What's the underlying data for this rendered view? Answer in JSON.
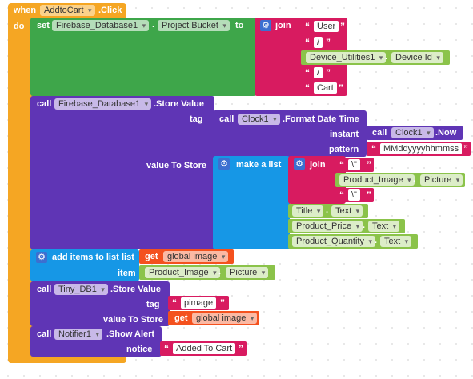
{
  "event": {
    "when": "when",
    "component": "AddtoCart",
    "event": ".Click",
    "do": "do"
  },
  "set_block": {
    "set": "set",
    "component": "Firebase_Database1",
    "property": "Project Bucket",
    "to": "to"
  },
  "join1": {
    "label": "join",
    "items": [
      "User",
      "/",
      "/",
      "Cart"
    ]
  },
  "device": {
    "component": "Device_Utilities1",
    "property": "Device Id"
  },
  "store_value": {
    "call": "call",
    "component": "Firebase_Database1",
    "method": ".Store Value",
    "tag": "tag",
    "value_to_store": "value To Store"
  },
  "clock_format": {
    "call": "call",
    "component": "Clock1",
    "method": ".Format Date Time",
    "instant": "instant",
    "pattern": "pattern"
  },
  "clock_now": {
    "call": "call",
    "component": "Clock1",
    "method": ".Now"
  },
  "pattern_value": "MMddyyyyhhmmss",
  "make_list": {
    "label": "make a list"
  },
  "join2": {
    "label": "join",
    "open": "\\\"",
    "close": "\\\""
  },
  "product_image": {
    "component": "Product_Image",
    "property": "Picture"
  },
  "title_text": {
    "component": "Title",
    "property": "Text"
  },
  "price_text": {
    "component": "Product_Price",
    "property": "Text"
  },
  "qty_text": {
    "component": "Product_Quantity",
    "property": "Text"
  },
  "add_items": {
    "label": "add items to list",
    "list": "list",
    "item": "item",
    "get": "get",
    "var": "global image"
  },
  "product_image2": {
    "component": "Product_Image",
    "property": "Picture"
  },
  "tinydb": {
    "call": "call",
    "component": "Tiny_DB1",
    "method": ".Store Value",
    "tag": "tag",
    "tag_value": "pimage",
    "value_to_store": "value To Store",
    "get": "get",
    "var": "global image"
  },
  "notifier": {
    "call": "call",
    "component": "Notifier1",
    "method": ".Show Alert",
    "notice": "notice",
    "notice_value": "Added To Cart"
  },
  "quote": "“",
  "quote_close": "”",
  "colors": {
    "event": "#f5a623",
    "set": "#3ea64a",
    "call": "#5f35b5",
    "text": "#d81b60",
    "property": "#8bc34a",
    "list": "#1697e6",
    "variable": "#f4511e"
  }
}
